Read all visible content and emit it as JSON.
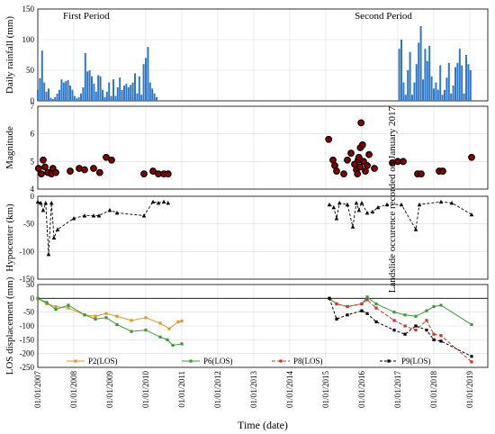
{
  "chart_data": {
    "x_labels": [
      "01/01/2007",
      "01/01/2008",
      "01/01/2009",
      "01/01/2010",
      "01/01/2011",
      "01/01/2012",
      "01/01/2013",
      "01/01/2014",
      "01/01/2015",
      "01/01/2016",
      "01/01/2017",
      "01/01/2018",
      "01/01/2019"
    ],
    "x_title": "Time (date)",
    "panels": [
      {
        "id": "rainfall",
        "type": "bar",
        "ylabel": "Daily rainfall (mm)",
        "yticks": [
          0,
          50,
          100,
          150
        ],
        "ylim": [
          0,
          150
        ],
        "annotations": [
          "First Period",
          "Second Period"
        ],
        "color": "#2e78c7",
        "series": [
          {
            "x": [
              2007.0,
              2007.06,
              2007.12,
              2007.18,
              2007.24,
              2007.3,
              2007.36,
              2007.42,
              2007.48,
              2007.54,
              2007.6,
              2007.66,
              2007.72,
              2007.78,
              2007.84,
              2007.9,
              2007.96,
              2008.02,
              2008.08,
              2008.14,
              2008.2,
              2008.26,
              2008.32,
              2008.38,
              2008.44,
              2008.5,
              2008.56,
              2008.62,
              2008.68,
              2008.74,
              2008.8,
              2008.86,
              2008.92,
              2008.98,
              2009.04,
              2009.1,
              2009.16,
              2009.22,
              2009.28,
              2009.34,
              2009.4,
              2009.46,
              2009.52,
              2009.58,
              2009.64,
              2009.7,
              2009.76,
              2009.82,
              2009.88,
              2009.94,
              2010.0,
              2010.06,
              2010.12,
              2010.18,
              2010.24,
              2010.3,
              2010.36,
              2010.42,
              2010.48,
              2010.54,
              2010.6,
              2010.66,
              2010.72,
              2010.78,
              2010.84,
              2010.9
            ],
            "values": [
              18,
              37,
              82,
              30,
              15,
              20,
              5,
              3,
              6,
              12,
              18,
              35,
              30,
              32,
              34,
              25,
              18,
              8,
              4,
              6,
              12,
              22,
              78,
              48,
              50,
              40,
              28,
              15,
              42,
              40,
              18,
              6,
              15,
              30,
              8,
              35,
              8,
              22,
              38,
              18,
              25,
              28,
              22,
              26,
              30,
              45,
              12,
              40,
              10,
              60,
              70,
              88,
              30,
              20,
              12,
              6,
              0,
              0,
              0,
              0,
              0,
              0,
              0,
              0,
              0,
              0
            ]
          },
          {
            "x": [
              2015.0,
              2015.06,
              2015.12,
              2015.18,
              2015.24,
              2015.3,
              2015.36,
              2015.42,
              2015.48,
              2015.54,
              2015.6,
              2015.66,
              2015.72,
              2015.78,
              2015.84,
              2015.9,
              2015.96,
              2016.02,
              2016.08,
              2016.14,
              2016.2,
              2016.26,
              2016.32,
              2016.38,
              2016.44,
              2016.5,
              2016.56,
              2016.62,
              2016.68,
              2016.74,
              2016.8,
              2016.86,
              2016.92,
              2016.98,
              2017.04,
              2017.1,
              2017.16,
              2017.22,
              2017.28,
              2017.34,
              2017.4,
              2017.46,
              2017.52,
              2017.58,
              2017.64,
              2017.7,
              2017.76,
              2017.82,
              2017.88,
              2017.94,
              2018.0,
              2018.06,
              2018.12,
              2018.18,
              2018.24,
              2018.3,
              2018.36,
              2018.42,
              2018.48,
              2018.54,
              2018.6,
              2018.66,
              2018.72,
              2018.78,
              2018.84,
              2018.9,
              2018.96,
              2019.02,
              2019.08,
              2019.14,
              2019.2
            ],
            "values": [
              0,
              0,
              0,
              0,
              0,
              0,
              0,
              0,
              0,
              0,
              0,
              0,
              0,
              0,
              0,
              0,
              0,
              0,
              0,
              0,
              0,
              0,
              0,
              0,
              0,
              0,
              0,
              0,
              0,
              0,
              0,
              0,
              0,
              0,
              85,
              100,
              30,
              10,
              50,
              80,
              10,
              30,
              60,
              95,
              122,
              35,
              85,
              65,
              90,
              40,
              20,
              30,
              18,
              58,
              10,
              18,
              38,
              62,
              12,
              25,
              55,
              62,
              85,
              58,
              12,
              75,
              60,
              50,
              0,
              0,
              0
            ]
          }
        ]
      },
      {
        "id": "magnitude",
        "type": "scatter",
        "ylabel": "Magnitude",
        "yticks": [
          4,
          5,
          6,
          7
        ],
        "ylim": [
          4,
          7
        ],
        "annotations": [
          "Landslide occurence recorded on January 2017"
        ],
        "color": "#8b0000",
        "points": [
          [
            2007.02,
            4.75
          ],
          [
            2007.1,
            4.55
          ],
          [
            2007.15,
            5.05
          ],
          [
            2007.2,
            4.8
          ],
          [
            2007.28,
            4.6
          ],
          [
            2007.38,
            4.55
          ],
          [
            2007.42,
            4.75
          ],
          [
            2007.5,
            4.6
          ],
          [
            2007.9,
            4.65
          ],
          [
            2008.15,
            4.75
          ],
          [
            2008.3,
            4.7
          ],
          [
            2008.55,
            4.75
          ],
          [
            2008.72,
            4.6
          ],
          [
            2008.9,
            5.15
          ],
          [
            2009.05,
            5.05
          ],
          [
            2009.95,
            4.55
          ],
          [
            2010.2,
            4.65
          ],
          [
            2010.35,
            4.55
          ],
          [
            2010.5,
            4.55
          ],
          [
            2010.62,
            4.55
          ],
          [
            2015.08,
            5.8
          ],
          [
            2015.2,
            5.05
          ],
          [
            2015.25,
            4.85
          ],
          [
            2015.3,
            4.65
          ],
          [
            2015.5,
            4.55
          ],
          [
            2015.6,
            5.05
          ],
          [
            2015.7,
            5.3
          ],
          [
            2015.8,
            4.9
          ],
          [
            2015.85,
            4.7
          ],
          [
            2015.88,
            4.55
          ],
          [
            2015.9,
            5.05
          ],
          [
            2015.92,
            5.15
          ],
          [
            2015.95,
            4.8
          ],
          [
            2015.96,
            5.5
          ],
          [
            2015.98,
            6.4
          ],
          [
            2016.02,
            5.6
          ],
          [
            2016.05,
            5.0
          ],
          [
            2016.1,
            4.65
          ],
          [
            2016.15,
            4.85
          ],
          [
            2016.2,
            5.25
          ],
          [
            2016.35,
            4.75
          ],
          [
            2016.85,
            4.95
          ],
          [
            2017.0,
            5.0
          ],
          [
            2017.15,
            5.0
          ],
          [
            2017.55,
            4.55
          ],
          [
            2017.65,
            4.55
          ],
          [
            2018.15,
            4.65
          ],
          [
            2018.25,
            4.65
          ],
          [
            2019.05,
            5.15
          ]
        ]
      },
      {
        "id": "hypocenter",
        "type": "line",
        "ylabel": "Hypocenter (km)",
        "yticks": [
          0,
          -50,
          -100,
          -150
        ],
        "ylim": [
          -150,
          0
        ],
        "color": "#000000",
        "points": [
          [
            2007.0,
            -10
          ],
          [
            2007.08,
            -12
          ],
          [
            2007.15,
            -25
          ],
          [
            2007.22,
            -12
          ],
          [
            2007.3,
            -105
          ],
          [
            2007.38,
            -12
          ],
          [
            2007.45,
            -75
          ],
          [
            2007.55,
            -60
          ],
          [
            2008.0,
            -40
          ],
          [
            2008.3,
            -35
          ],
          [
            2008.55,
            -35
          ],
          [
            2008.7,
            -35
          ],
          [
            2009.0,
            -25
          ],
          [
            2009.2,
            -30
          ],
          [
            2009.95,
            -35
          ],
          [
            2010.2,
            -10
          ],
          [
            2010.35,
            -12
          ],
          [
            2010.5,
            -10
          ],
          [
            2010.62,
            -12
          ],
          [
            2015.1,
            -15
          ],
          [
            2015.22,
            -20
          ],
          [
            2015.3,
            -40
          ],
          [
            2015.38,
            -12
          ],
          [
            2015.6,
            -15
          ],
          [
            2015.75,
            -55
          ],
          [
            2015.85,
            -12
          ],
          [
            2015.92,
            -25
          ],
          [
            2016.0,
            -12
          ],
          [
            2016.15,
            -30
          ],
          [
            2016.3,
            -28
          ],
          [
            2016.45,
            -20
          ],
          [
            2016.7,
            -15
          ],
          [
            2017.1,
            -15
          ],
          [
            2017.5,
            -60
          ],
          [
            2017.6,
            -15
          ],
          [
            2018.2,
            -10
          ],
          [
            2018.5,
            -12
          ],
          [
            2019.05,
            -33
          ]
        ]
      },
      {
        "id": "los",
        "type": "line",
        "ylabel": "LOS displacement (mm)",
        "yticks": [
          50,
          0,
          -50,
          -100,
          -150,
          -200,
          -250
        ],
        "ylim": [
          -250,
          50
        ],
        "series": [
          {
            "name": "P2(LOS)",
            "color": "#e09a25",
            "dash": "",
            "points": [
              [
                2007.0,
                0
              ],
              [
                2007.25,
                -20
              ],
              [
                2007.5,
                -30
              ],
              [
                2007.85,
                -35
              ],
              [
                2008.3,
                -60
              ],
              [
                2008.6,
                -65
              ],
              [
                2008.9,
                -55
              ],
              [
                2009.2,
                -65
              ],
              [
                2009.6,
                -80
              ],
              [
                2010.0,
                -70
              ],
              [
                2010.4,
                -90
              ],
              [
                2010.65,
                -110
              ],
              [
                2010.9,
                -85
              ],
              [
                2011.0,
                -82
              ]
            ]
          },
          {
            "name": "P6(LOS)",
            "color": "#3c9a3c",
            "dash": "",
            "points": [
              [
                2007.0,
                0
              ],
              [
                2007.25,
                -15
              ],
              [
                2007.5,
                -40
              ],
              [
                2007.85,
                -25
              ],
              [
                2008.3,
                -60
              ],
              [
                2008.6,
                -75
              ],
              [
                2008.9,
                -70
              ],
              [
                2009.2,
                -95
              ],
              [
                2009.6,
                -120
              ],
              [
                2010.0,
                -115
              ],
              [
                2010.4,
                -140
              ],
              [
                2010.6,
                -150
              ],
              [
                2010.75,
                -170
              ],
              [
                2011.0,
                -165
              ],
              [
                2015.1,
                0
              ],
              [
                2015.3,
                -20
              ],
              [
                2015.6,
                -30
              ],
              [
                2016.0,
                -20
              ],
              [
                2016.15,
                5
              ],
              [
                2016.4,
                -20
              ],
              [
                2016.9,
                -50
              ],
              [
                2017.2,
                -60
              ],
              [
                2017.5,
                -65
              ],
              [
                2017.8,
                -45
              ],
              [
                2018.0,
                -30
              ],
              [
                2018.2,
                -25
              ],
              [
                2019.05,
                -95
              ]
            ]
          },
          {
            "name": "P8(LOS)",
            "color": "#c0392b",
            "dash": "4,2",
            "points": [
              [
                2015.1,
                0
              ],
              [
                2015.3,
                -20
              ],
              [
                2015.6,
                -30
              ],
              [
                2016.0,
                -20
              ],
              [
                2016.15,
                -5
              ],
              [
                2016.4,
                -35
              ],
              [
                2016.9,
                -80
              ],
              [
                2017.2,
                -100
              ],
              [
                2017.5,
                -115
              ],
              [
                2017.8,
                -80
              ],
              [
                2018.0,
                -130
              ],
              [
                2018.2,
                -135
              ],
              [
                2019.05,
                -230
              ]
            ]
          },
          {
            "name": "P9(LOS)",
            "color": "#000000",
            "dash": "3,2",
            "points": [
              [
                2015.1,
                0
              ],
              [
                2015.3,
                -75
              ],
              [
                2015.6,
                -60
              ],
              [
                2016.0,
                -45
              ],
              [
                2016.15,
                -55
              ],
              [
                2016.4,
                -85
              ],
              [
                2016.9,
                -115
              ],
              [
                2017.2,
                -130
              ],
              [
                2017.5,
                -100
              ],
              [
                2017.8,
                -115
              ],
              [
                2018.0,
                -150
              ],
              [
                2018.2,
                -155
              ],
              [
                2019.05,
                -210
              ]
            ]
          }
        ]
      }
    ]
  }
}
